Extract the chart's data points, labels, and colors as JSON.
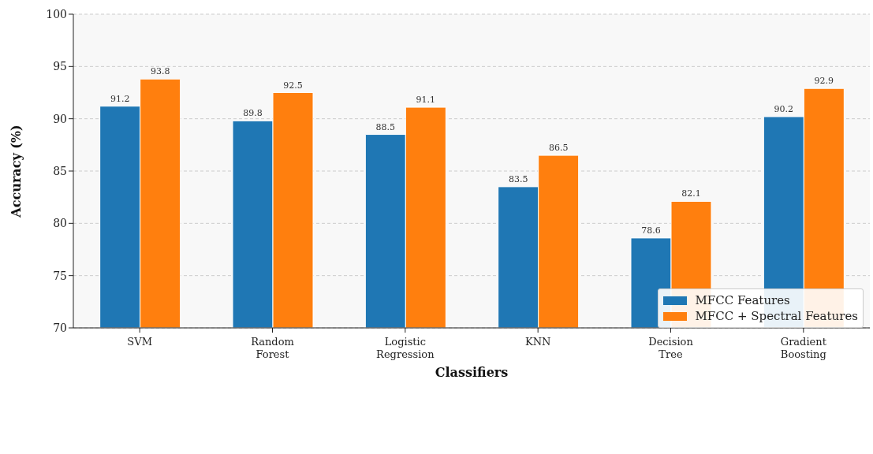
{
  "chart_data": {
    "type": "bar",
    "xlabel": "Classifiers",
    "ylabel": "Accuracy (%)",
    "categories": [
      "SVM",
      "Random Forest",
      "Logistic Regression",
      "KNN",
      "Decision Tree",
      "Gradient Boosting"
    ],
    "series": [
      {
        "name": "MFCC Features",
        "color": "#1f77b4",
        "values": [
          91.2,
          89.8,
          88.5,
          83.5,
          78.6,
          90.2
        ]
      },
      {
        "name": "MFCC + Spectral Features",
        "color": "#ff7f0e",
        "values": [
          93.8,
          92.5,
          91.1,
          86.5,
          82.1,
          92.9
        ]
      }
    ],
    "ylim": [
      70,
      100
    ],
    "yticks": [
      70,
      75,
      80,
      85,
      90,
      95,
      100
    ],
    "grid": "y",
    "legend": "bottom right",
    "data_labels": true
  }
}
